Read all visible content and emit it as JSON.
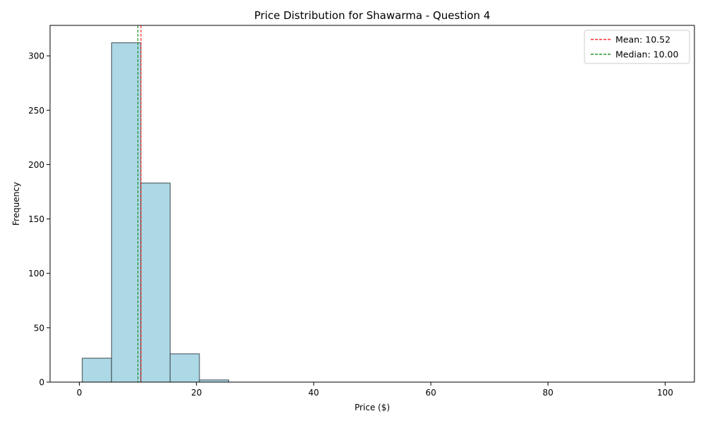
{
  "chart_data": {
    "type": "bar",
    "title": "Price Distribution for Shawarma - Question 4",
    "xlabel": "Price ($)",
    "ylabel": "Frequency",
    "xlim": [
      -5,
      105
    ],
    "ylim": [
      0,
      328
    ],
    "bins": [
      {
        "x0": 0.5,
        "x1": 5.5,
        "value": 22
      },
      {
        "x0": 5.5,
        "x1": 10.5,
        "value": 312
      },
      {
        "x0": 10.5,
        "x1": 15.5,
        "value": 183
      },
      {
        "x0": 15.5,
        "x1": 20.5,
        "value": 26
      },
      {
        "x0": 20.5,
        "x1": 25.5,
        "value": 2
      },
      {
        "x0": 25.5,
        "x1": 30.5,
        "value": 0
      },
      {
        "x0": 30.5,
        "x1": 35.5,
        "value": 0
      },
      {
        "x0": 35.5,
        "x1": 40.5,
        "value": 0
      },
      {
        "x0": 40.5,
        "x1": 45.5,
        "value": 0
      },
      {
        "x0": 45.5,
        "x1": 50.5,
        "value": 0
      },
      {
        "x0": 50.5,
        "x1": 55.5,
        "value": 0
      },
      {
        "x0": 55.5,
        "x1": 60.5,
        "value": 0
      },
      {
        "x0": 60.5,
        "x1": 65.5,
        "value": 0
      },
      {
        "x0": 65.5,
        "x1": 70.5,
        "value": 0
      },
      {
        "x0": 70.5,
        "x1": 75.5,
        "value": 0
      },
      {
        "x0": 75.5,
        "x1": 80.5,
        "value": 0
      },
      {
        "x0": 80.5,
        "x1": 85.5,
        "value": 0
      },
      {
        "x0": 85.5,
        "x1": 90.5,
        "value": 0
      },
      {
        "x0": 90.5,
        "x1": 95.5,
        "value": 0
      },
      {
        "x0": 95.5,
        "x1": 100.5,
        "value": 0
      }
    ],
    "x_ticks": [
      0,
      20,
      40,
      60,
      80,
      100
    ],
    "y_ticks": [
      0,
      50,
      100,
      150,
      200,
      250,
      300
    ],
    "reference_lines": [
      {
        "name": "mean",
        "label": "Mean: 10.52",
        "value": 10.52,
        "color": "#ff0000",
        "style": "dashed"
      },
      {
        "name": "median",
        "label": "Median: 10.00",
        "value": 10.0,
        "color": "#008000",
        "style": "dashed"
      }
    ],
    "bar_fill": "#add8e6",
    "bar_opacity": 1.0,
    "bar_edge": "#3d4a4f",
    "grid": false,
    "legend_position": "top-right"
  }
}
